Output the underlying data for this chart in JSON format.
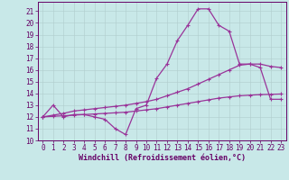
{
  "xlabel": "Windchill (Refroidissement éolien,°C)",
  "bg_color": "#c8e8e8",
  "line_color": "#993399",
  "grid_color": "#b0cccc",
  "xlim": [
    -0.5,
    23.5
  ],
  "ylim": [
    10,
    21.8
  ],
  "ytick_vals": [
    10,
    11,
    12,
    13,
    14,
    15,
    16,
    17,
    18,
    19,
    20,
    21
  ],
  "xtick_vals": [
    0,
    1,
    2,
    3,
    4,
    5,
    6,
    7,
    8,
    9,
    10,
    11,
    12,
    13,
    14,
    15,
    16,
    17,
    18,
    19,
    20,
    21,
    22,
    23
  ],
  "line1_x": [
    0,
    1,
    2,
    3,
    4,
    5,
    6,
    7,
    8,
    9,
    10,
    11,
    12,
    13,
    14,
    15,
    16,
    17,
    18,
    19,
    20,
    21,
    22,
    23
  ],
  "line1_y": [
    12.0,
    13.0,
    12.0,
    12.2,
    12.2,
    12.0,
    11.8,
    11.0,
    10.5,
    12.7,
    13.0,
    15.3,
    16.5,
    18.5,
    19.8,
    21.2,
    21.2,
    19.8,
    19.3,
    16.5,
    16.5,
    16.2,
    13.5,
    13.5
  ],
  "line2_x": [
    0,
    1,
    2,
    3,
    4,
    5,
    6,
    7,
    8,
    9,
    10,
    11,
    12,
    13,
    14,
    15,
    16,
    17,
    18,
    19,
    20,
    21,
    22,
    23
  ],
  "line2_y": [
    12.0,
    12.15,
    12.3,
    12.5,
    12.6,
    12.7,
    12.8,
    12.9,
    13.0,
    13.15,
    13.3,
    13.5,
    13.8,
    14.1,
    14.4,
    14.8,
    15.2,
    15.6,
    16.0,
    16.4,
    16.5,
    16.5,
    16.3,
    16.2
  ],
  "line3_x": [
    0,
    1,
    2,
    3,
    4,
    5,
    6,
    7,
    8,
    9,
    10,
    11,
    12,
    13,
    14,
    15,
    16,
    17,
    18,
    19,
    20,
    21,
    22,
    23
  ],
  "line3_y": [
    12.0,
    12.05,
    12.1,
    12.15,
    12.2,
    12.25,
    12.3,
    12.35,
    12.4,
    12.5,
    12.6,
    12.7,
    12.85,
    13.0,
    13.15,
    13.3,
    13.45,
    13.6,
    13.7,
    13.8,
    13.85,
    13.9,
    13.92,
    13.95
  ],
  "tick_color": "#660066",
  "label_fontsize": 5.5,
  "xlabel_fontsize": 6.0
}
